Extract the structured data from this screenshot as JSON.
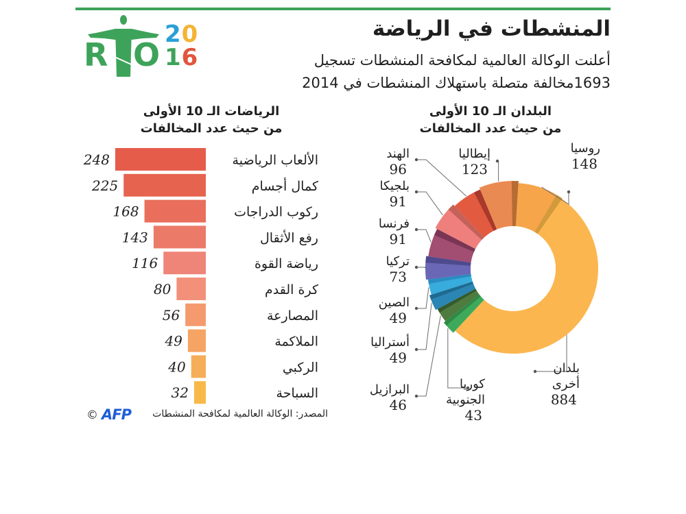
{
  "header": {
    "logo_text_rio": "RIO",
    "logo_year_top": "20",
    "logo_year_bottom": "16",
    "title": "المنشطات في الرياضة",
    "subtitle_line1": "أعلنت الوكالة العالمية لمكافحة المنشطات تسجيل",
    "subtitle_line2": "1693مخالفة متصلة باستهلاك المنشطات في 2014"
  },
  "colors": {
    "accent_green": "#3ea35a",
    "year_blue": "#2a9fd6",
    "year_orange": "#f5b335",
    "year_green": "#3ea35a",
    "year_red": "#e2553e",
    "afp_blue": "#1f5fd6"
  },
  "footer": {
    "source": "المصدر: الوكالة العالمية لمكافحة المنشطات",
    "afp_logo": "AFP",
    "copyright": "©"
  },
  "chart_data": [
    {
      "type": "bar",
      "orientation": "horizontal",
      "title_line1": "الرياضات الـ 10 الأولى",
      "title_line2": "من حيث عدد المخالفات",
      "categories": [
        "الألعاب الرياضية",
        "كمال أجسام",
        "ركوب الدراجات",
        "رفع الأثقال",
        "رياضة القوة",
        "كرة القدم",
        "المصارعة",
        "الملاكمة",
        "الركبي",
        "السباحة"
      ],
      "values": [
        248,
        225,
        168,
        143,
        116,
        80,
        56,
        49,
        40,
        32
      ],
      "colors": [
        "#e55c4b",
        "#e6634f",
        "#e96f5c",
        "#ec7a68",
        "#ef8479",
        "#f2907a",
        "#f49a6e",
        "#f5a464",
        "#f6ad5a",
        "#f8b94a"
      ],
      "xlim": [
        0,
        248
      ],
      "grid": false,
      "legend": "none"
    },
    {
      "type": "pie",
      "style": "donut",
      "title_line1": "البلدان الـ 10 الأولى",
      "title_line2": "من حيث عدد المخالفات",
      "total": 1693,
      "slices": [
        {
          "label": "بلدان أخرى",
          "label_lines": [
            "بلدان",
            "أخرى"
          ],
          "value": 884,
          "color": "#fbb64f",
          "shade": "#fbb64f"
        },
        {
          "label": "كوريا الجنوبية",
          "label_lines": [
            "كوريا",
            "الجنوبية"
          ],
          "value": 43,
          "color": "#3ea95a",
          "shade": "#2f8a47"
        },
        {
          "label": "البرازيل",
          "label_lines": [
            "البرازيل"
          ],
          "value": 46,
          "color": "#4f7b40",
          "shade": "#355a2d"
        },
        {
          "label": "أستراليا",
          "label_lines": [
            "أستراليا"
          ],
          "value": 49,
          "color": "#2b86b4",
          "shade": "#1f6a90"
        },
        {
          "label": "الصين",
          "label_lines": [
            "الصين"
          ],
          "value": 49,
          "color": "#38acdc",
          "shade": "#2a8cc0"
        },
        {
          "label": "تركيا",
          "label_lines": [
            "تركيا"
          ],
          "value": 73,
          "color": "#6a67b6",
          "shade": "#4e4a8e"
        },
        {
          "label": "فرنسا",
          "label_lines": [
            "فرنسا"
          ],
          "value": 91,
          "color": "#a24d72",
          "shade": "#7a3554"
        },
        {
          "label": "بلجيكا",
          "label_lines": [
            "بلجيكا"
          ],
          "value": 91,
          "color": "#ef7f7d",
          "shade": "#c4625a"
        },
        {
          "label": "الهند",
          "label_lines": [
            "الهند"
          ],
          "value": 96,
          "color": "#e25a40",
          "shade": "#a8392b"
        },
        {
          "label": "إيطاليا",
          "label_lines": [
            "إيطاليا"
          ],
          "value": 123,
          "color": "#ea8a53",
          "shade": "#b66c33"
        },
        {
          "label": "روسيا",
          "label_lines": [
            "روسيا"
          ],
          "value": 148,
          "color": "#f6a54a",
          "shade": "#d39a3c"
        }
      ],
      "legend": "leader-lines"
    }
  ]
}
